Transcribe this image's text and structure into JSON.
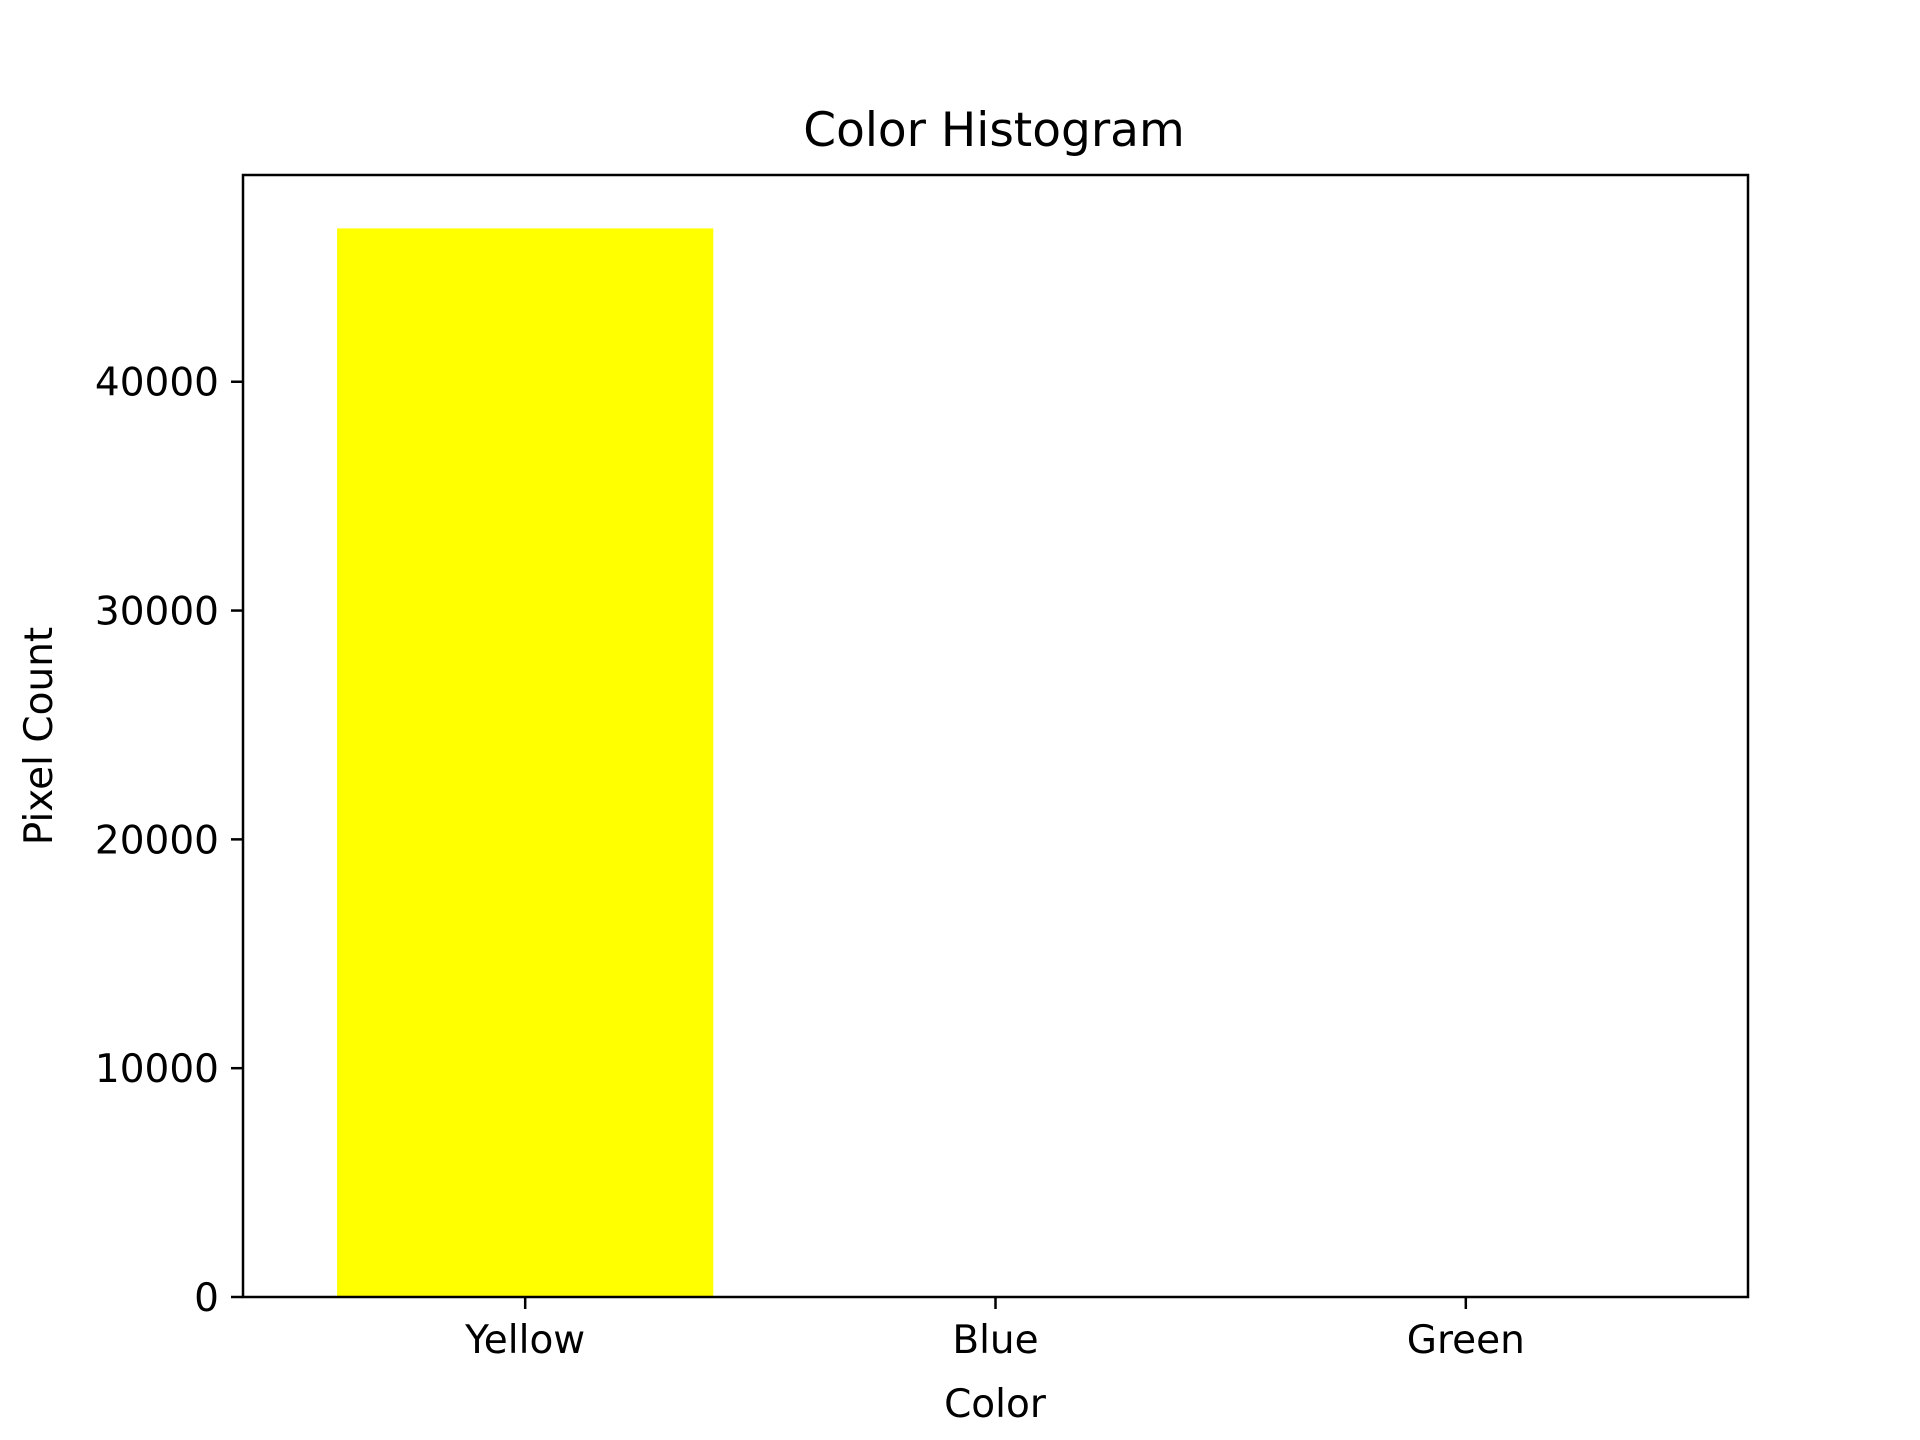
{
  "chart_data": {
    "type": "bar",
    "title": "Color Histogram",
    "xlabel": "Color",
    "ylabel": "Pixel Count",
    "categories": [
      "Yellow",
      "Blue",
      "Green"
    ],
    "values": [
      46700,
      0,
      0
    ],
    "colors": [
      "#ffff00",
      "#0000ff",
      "#008000"
    ],
    "ylim": [
      0,
      49035
    ],
    "yticks": [
      0,
      10000,
      20000,
      30000,
      40000
    ],
    "ytick_labels": [
      "0",
      "10000",
      "20000",
      "30000",
      "40000"
    ],
    "grid": false,
    "legend": "none"
  }
}
